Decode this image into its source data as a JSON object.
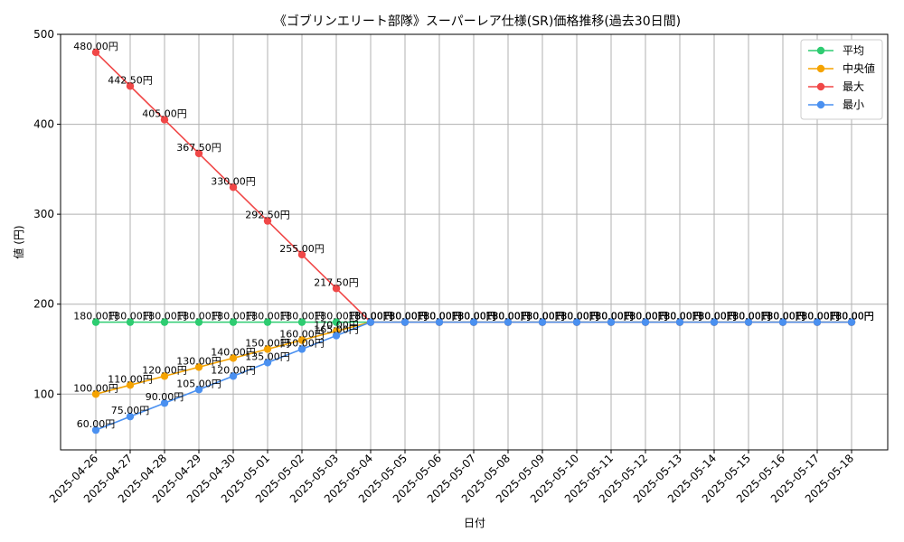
{
  "chart_data": {
    "type": "line",
    "title": "《ゴブリンエリート部隊》スーパーレア仕様(SR)価格推移(過去30日間)",
    "xlabel": "日付",
    "ylabel": "値 (円)",
    "ylim": [
      38,
      500
    ],
    "yticks": [
      100,
      200,
      300,
      400,
      500
    ],
    "grid": true,
    "legend_position": "top-right",
    "label_suffix": "円",
    "categories": [
      "2025-04-26",
      "2025-04-27",
      "2025-04-28",
      "2025-04-29",
      "2025-04-30",
      "2025-05-01",
      "2025-05-02",
      "2025-05-03",
      "2025-05-04",
      "2025-05-05",
      "2025-05-06",
      "2025-05-07",
      "2025-05-08",
      "2025-05-09",
      "2025-05-10",
      "2025-05-11",
      "2025-05-12",
      "2025-05-13",
      "2025-05-14",
      "2025-05-15",
      "2025-05-16",
      "2025-05-17",
      "2025-05-18"
    ],
    "series": [
      {
        "name": "平均",
        "color": "#2ecc71",
        "values": [
          180,
          180,
          180,
          180,
          180,
          180,
          180,
          180,
          180,
          180,
          180,
          180,
          180,
          180,
          180,
          180,
          180,
          180,
          180,
          180,
          180,
          180,
          180
        ]
      },
      {
        "name": "中央値",
        "color": "#f5a300",
        "values": [
          100,
          110,
          120,
          130,
          140,
          150,
          160,
          170,
          180,
          180,
          180,
          180,
          180,
          180,
          180,
          180,
          180,
          180,
          180,
          180,
          180,
          180,
          180
        ]
      },
      {
        "name": "最大",
        "color": "#f04747",
        "values": [
          480,
          442.5,
          405,
          367.5,
          330,
          292.5,
          255,
          217.5,
          180,
          180,
          180,
          180,
          180,
          180,
          180,
          180,
          180,
          180,
          180,
          180,
          180,
          180,
          180
        ]
      },
      {
        "name": "最小",
        "color": "#4a90f0",
        "values": [
          60,
          75,
          90,
          105,
          120,
          135,
          150,
          165,
          180,
          180,
          180,
          180,
          180,
          180,
          180,
          180,
          180,
          180,
          180,
          180,
          180,
          180,
          180
        ]
      }
    ]
  }
}
